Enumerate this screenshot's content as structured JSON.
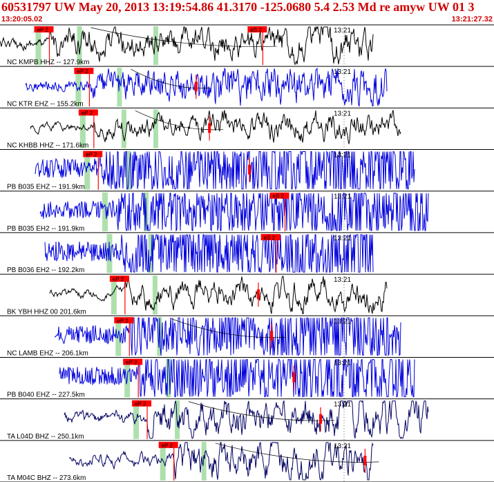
{
  "header": {
    "title": "60531797 UW May 20, 2013 13:19:54.86   41.3170 -125.0680  5.4 2.53 Md re amyw UW 01   3",
    "start_time": "13:20:05.02",
    "end_time": "13:21:27.32"
  },
  "colors": {
    "header_text": "#d00000",
    "pick_red": "#ff0000",
    "window_green": "#aee0ae",
    "trace_black": "#000000",
    "trace_blue": "#0000dd",
    "label_text": "#000000"
  },
  "chart_data": {
    "type": "seismogram_record_section",
    "time_axis": {
      "start": "13:20:05.02",
      "end": "13:21:27.32",
      "tick_label": "13:21"
    },
    "traces": [
      {
        "label": "NC KMPB HHZ -- 127.9km",
        "color": "black",
        "p_pick": "eP 2",
        "s_pick": "eS 2",
        "p_t": 0.08,
        "s_t": 0.56,
        "amp": 0.55,
        "smooth": 4
      },
      {
        "label": "NC KTR EHZ -- 155.2km",
        "color": "blue",
        "p_pick": "eP 2",
        "s_pick": "",
        "p_t": 0.17,
        "s_t": 0.41,
        "amp": 0.65,
        "smooth": 2
      },
      {
        "label": "NC KHBB HHZ -- 171.6km",
        "color": "black",
        "p_pick": "eP 2",
        "s_pick": "",
        "p_t": 0.18,
        "s_t": 0.44,
        "amp": 0.5,
        "smooth": 5
      },
      {
        "label": "PB B035 EHZ -- 191.9km",
        "color": "blue",
        "p_pick": "eP 2",
        "s_pick": "",
        "p_t": 0.19,
        "s_t": 0.53,
        "amp": 0.75,
        "smooth": 1
      },
      {
        "label": "PB B035 EH2 -- 191.9km",
        "color": "blue",
        "p_pick": "",
        "s_pick": "eS 2",
        "p_t": 0.23,
        "s_t": 0.61,
        "amp": 0.7,
        "smooth": 1
      },
      {
        "label": "PB B036 EH2 -- 192.2km",
        "color": "blue",
        "p_pick": "",
        "s_pick": "eS 2",
        "p_t": 0.24,
        "s_t": 0.59,
        "amp": 0.75,
        "smooth": 1
      },
      {
        "label": "BK YBH HHZ 00 201.6km",
        "color": "black",
        "p_pick": "eP 2",
        "s_pick": "",
        "p_t": 0.25,
        "s_t": 0.55,
        "amp": 0.7,
        "smooth": 6
      },
      {
        "label": "NC LAMB EHZ -- 206.1km",
        "color": "blue",
        "p_pick": "eP 2",
        "s_pick": "",
        "p_t": 0.26,
        "s_t": 0.58,
        "amp": 0.7,
        "smooth": 1
      },
      {
        "label": "PB B040 EHZ -- 227.5km",
        "color": "blue",
        "p_pick": "eP 2",
        "s_pick": "",
        "p_t": 0.28,
        "s_t": 0.63,
        "amp": 0.7,
        "smooth": 1
      },
      {
        "label": "TA L04D BHZ -- 250.1km",
        "color": "navy",
        "p_pick": "eP 2",
        "s_pick": "",
        "p_t": 0.3,
        "s_t": 0.69,
        "amp": 0.7,
        "smooth": 4
      },
      {
        "label": "TA M04C BHZ -- 273.6km",
        "color": "navy",
        "p_pick": "eP 2",
        "s_pick": "",
        "p_t": 0.36,
        "s_t": 0.79,
        "amp": 0.7,
        "smooth": 4
      }
    ]
  }
}
